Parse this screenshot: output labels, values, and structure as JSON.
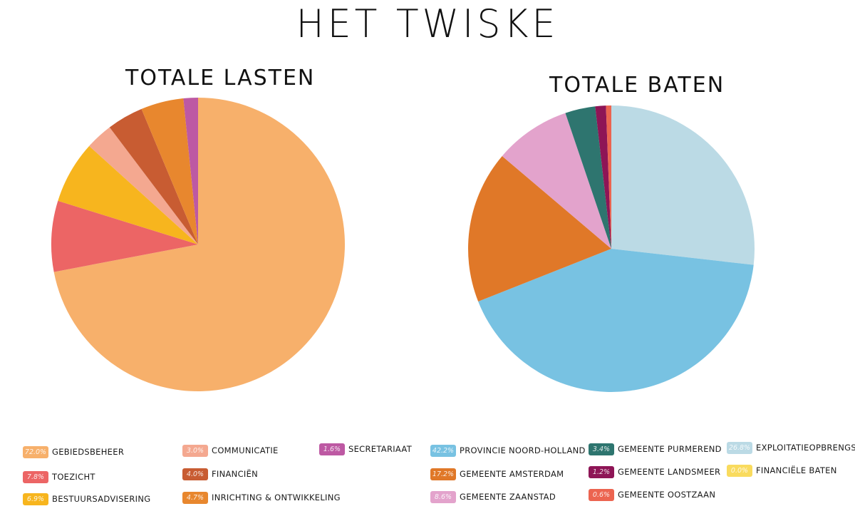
{
  "title": "HET TWISKE",
  "chart_data": [
    {
      "type": "pie",
      "title": "TOTALE LASTEN",
      "slices": [
        {
          "label": "GEBIEDSBEHEER",
          "pct_label": "72.0%",
          "value": 72.0,
          "color": "#F7B06B"
        },
        {
          "label": "TOEZICHT",
          "pct_label": "7.8%",
          "value": 7.8,
          "color": "#EC6565"
        },
        {
          "label": "BESTUURSADVISERING",
          "pct_label": "6.9%",
          "value": 6.9,
          "color": "#F7B51E"
        },
        {
          "label": "COMMUNICATIE",
          "pct_label": "3.0%",
          "value": 3.0,
          "color": "#F4A890"
        },
        {
          "label": "FINANCIËN",
          "pct_label": "4.0%",
          "value": 4.0,
          "color": "#C85C32"
        },
        {
          "label": "INRICHTING & ONTWIKKELING",
          "pct_label": "4.7%",
          "value": 4.7,
          "color": "#E8872E"
        },
        {
          "label": "SECRETARIAAT",
          "pct_label": "1.6%",
          "value": 1.6,
          "color": "#BD59A3"
        }
      ]
    },
    {
      "type": "pie",
      "title": "TOTALE BATEN",
      "slices": [
        {
          "label": "PROVINCIE NOORD-HOLLAND",
          "pct_label": "42.2%",
          "value": 42.2,
          "color": "#78C2E2"
        },
        {
          "label": "GEMEENTE AMSTERDAM",
          "pct_label": "17.2%",
          "value": 17.2,
          "color": "#E07828"
        },
        {
          "label": "GEMEENTE ZAANSTAD",
          "pct_label": "8.6%",
          "value": 8.6,
          "color": "#E3A3CC"
        },
        {
          "label": "GEMEENTE PURMEREND",
          "pct_label": "3.4%",
          "value": 3.4,
          "color": "#2E756F"
        },
        {
          "label": "GEMEENTE LANDSMEER",
          "pct_label": "1.2%",
          "value": 1.2,
          "color": "#8E1556"
        },
        {
          "label": "GEMEENTE OOSTZAAN",
          "pct_label": "0.6%",
          "value": 0.6,
          "color": "#EC6450"
        },
        {
          "label": "EXPLOITATIEOPBRENGSTEN",
          "pct_label": "26.8%",
          "value": 26.8,
          "color": "#BBDAE5"
        },
        {
          "label": "FINANCIËLE BATEN",
          "pct_label": "0.0%",
          "value": 0.0,
          "color": "#F9DB5E"
        }
      ]
    }
  ]
}
